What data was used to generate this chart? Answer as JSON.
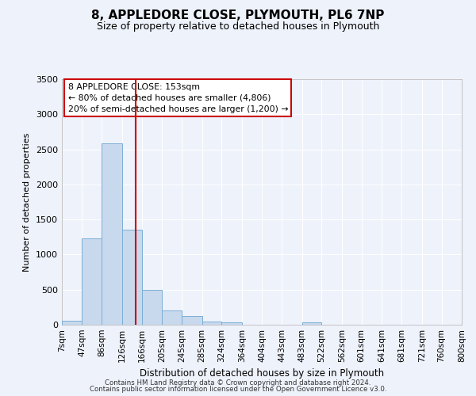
{
  "title": "8, APPLEDORE CLOSE, PLYMOUTH, PL6 7NP",
  "subtitle": "Size of property relative to detached houses in Plymouth",
  "xlabel": "Distribution of detached houses by size in Plymouth",
  "ylabel": "Number of detached properties",
  "bar_color": "#c8d9ee",
  "bar_edgecolor": "#7aaed6",
  "vline_x": 153,
  "vline_color": "#cc0000",
  "bin_edges": [
    7,
    47,
    86,
    126,
    166,
    205,
    245,
    285,
    324,
    364,
    404,
    443,
    483,
    522,
    562,
    601,
    641,
    681,
    721,
    760,
    800
  ],
  "bar_heights": [
    55,
    1230,
    2590,
    1350,
    500,
    200,
    120,
    50,
    30,
    0,
    0,
    0,
    30,
    0,
    0,
    0,
    0,
    0,
    0,
    0
  ],
  "ylim": [
    0,
    3500
  ],
  "yticks": [
    0,
    500,
    1000,
    1500,
    2000,
    2500,
    3000,
    3500
  ],
  "annotation_title": "8 APPLEDORE CLOSE: 153sqm",
  "annotation_line1": "← 80% of detached houses are smaller (4,806)",
  "annotation_line2": "20% of semi-detached houses are larger (1,200) →",
  "annotation_box_facecolor": "#ffffff",
  "annotation_box_edgecolor": "#cc0000",
  "footer_line1": "Contains HM Land Registry data © Crown copyright and database right 2024.",
  "footer_line2": "Contains public sector information licensed under the Open Government Licence v3.0.",
  "background_color": "#eef2fb",
  "grid_color": "#ffffff",
  "tick_labels": [
    "7sqm",
    "47sqm",
    "86sqm",
    "126sqm",
    "166sqm",
    "205sqm",
    "245sqm",
    "285sqm",
    "324sqm",
    "364sqm",
    "404sqm",
    "443sqm",
    "483sqm",
    "522sqm",
    "562sqm",
    "601sqm",
    "641sqm",
    "681sqm",
    "721sqm",
    "760sqm",
    "800sqm"
  ]
}
